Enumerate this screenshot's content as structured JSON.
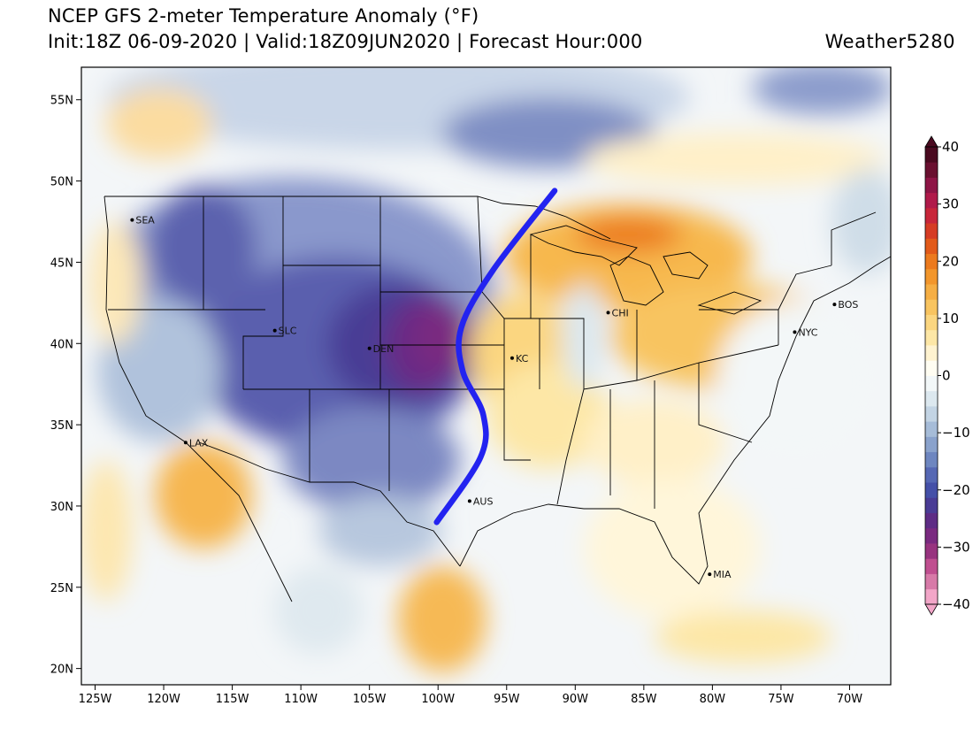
{
  "header": {
    "title": "NCEP GFS 2-meter Temperature Anomaly (°F)",
    "subtitle": "Init:18Z 06-09-2020 | Valid:18Z09JUN2020 | Forecast Hour:000",
    "brand": "Weather5280"
  },
  "map": {
    "lon_range": [
      -126,
      -67
    ],
    "lat_range": [
      19,
      57
    ],
    "lat_ticks": [
      {
        "value": 20,
        "label": "20N"
      },
      {
        "value": 25,
        "label": "25N"
      },
      {
        "value": 30,
        "label": "30N"
      },
      {
        "value": 35,
        "label": "35N"
      },
      {
        "value": 40,
        "label": "40N"
      },
      {
        "value": 45,
        "label": "45N"
      },
      {
        "value": 50,
        "label": "50N"
      },
      {
        "value": 55,
        "label": "55N"
      }
    ],
    "lon_ticks": [
      {
        "value": -125,
        "label": "125W"
      },
      {
        "value": -120,
        "label": "120W"
      },
      {
        "value": -115,
        "label": "115W"
      },
      {
        "value": -110,
        "label": "110W"
      },
      {
        "value": -105,
        "label": "105W"
      },
      {
        "value": -100,
        "label": "100W"
      },
      {
        "value": -95,
        "label": "95W"
      },
      {
        "value": -90,
        "label": "90W"
      },
      {
        "value": -85,
        "label": "85W"
      },
      {
        "value": -80,
        "label": "80W"
      },
      {
        "value": -75,
        "label": "75W"
      },
      {
        "value": -70,
        "label": "70W"
      }
    ],
    "cities": [
      {
        "name": "SEA",
        "lon": -122.3,
        "lat": 47.6
      },
      {
        "name": "SLC",
        "lon": -111.9,
        "lat": 40.8
      },
      {
        "name": "DEN",
        "lon": -105.0,
        "lat": 39.7
      },
      {
        "name": "LAX",
        "lon": -118.4,
        "lat": 33.9
      },
      {
        "name": "KC",
        "lon": -94.6,
        "lat": 39.1
      },
      {
        "name": "CHI",
        "lon": -87.6,
        "lat": 41.9
      },
      {
        "name": "NYC",
        "lon": -74.0,
        "lat": 40.7
      },
      {
        "name": "BOS",
        "lon": -71.1,
        "lat": 42.4
      },
      {
        "name": "AUS",
        "lon": -97.7,
        "lat": 30.3
      },
      {
        "name": "MIA",
        "lon": -80.2,
        "lat": 25.8
      }
    ],
    "front_line": {
      "color": "#2323f0",
      "points": [
        [
          -91.5,
          49.4
        ],
        [
          -96.0,
          44.5
        ],
        [
          -98.3,
          41.0
        ],
        [
          -98.2,
          38.3
        ],
        [
          -96.7,
          35.6
        ],
        [
          -96.9,
          33.0
        ],
        [
          -100.1,
          29.0
        ]
      ]
    }
  },
  "colorbar": {
    "labels": [
      {
        "value": 40,
        "label": "40"
      },
      {
        "value": 30,
        "label": "30"
      },
      {
        "value": 20,
        "label": "20"
      },
      {
        "value": 10,
        "label": "10"
      },
      {
        "value": 0,
        "label": "0"
      },
      {
        "value": -10,
        "label": "−10"
      },
      {
        "value": -20,
        "label": "−20"
      },
      {
        "value": -30,
        "label": "−30"
      },
      {
        "value": -40,
        "label": "−40"
      }
    ],
    "colors_low_to_high": [
      "#f2a6c8",
      "#d77aa8",
      "#c04f90",
      "#98337f",
      "#7a2a80",
      "#5e2c85",
      "#4a3c95",
      "#4550a8",
      "#5668b4",
      "#6e86c0",
      "#8aa2cc",
      "#a6bcd8",
      "#c3d4e4",
      "#dce8ef",
      "#f2f7f8",
      "#fffdf2",
      "#fff3d0",
      "#fde7a6",
      "#fbd680",
      "#f8c460",
      "#f5ae44",
      "#f2962c",
      "#ec7a1e",
      "#e25a1a",
      "#d63c24",
      "#c8263a",
      "#b01a4a",
      "#8e1546",
      "#6a1030",
      "#4a0a20"
    ]
  }
}
